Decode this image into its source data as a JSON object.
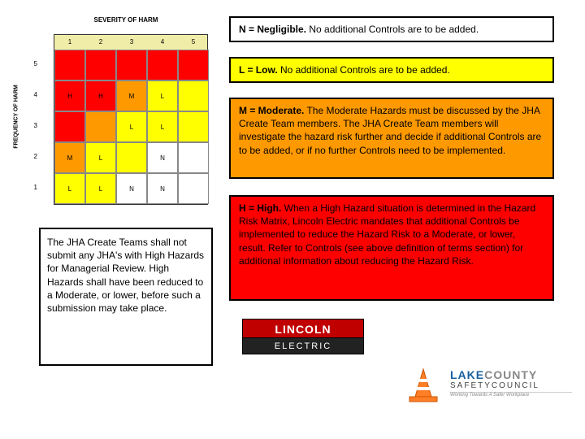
{
  "matrix": {
    "title": "SEVERITY OF HARM",
    "ylabel": "FREQUENCY OF HARM",
    "col_headers": [
      "1",
      "2",
      "3",
      "4",
      "5"
    ],
    "row_labels": [
      "5",
      "4",
      "3",
      "2",
      "1"
    ],
    "cells": [
      [
        {
          "bg": "#ff0000",
          "t": ""
        },
        {
          "bg": "#ff0000",
          "t": ""
        },
        {
          "bg": "#ff0000",
          "t": ""
        },
        {
          "bg": "#ff0000",
          "t": ""
        },
        {
          "bg": "#ff0000",
          "t": ""
        }
      ],
      [
        {
          "bg": "#ff0000",
          "t": "H"
        },
        {
          "bg": "#ff0000",
          "t": "H"
        },
        {
          "bg": "#ff9900",
          "t": "M"
        },
        {
          "bg": "#ffff00",
          "t": "L"
        },
        {
          "bg": "#ffff00",
          "t": ""
        }
      ],
      [
        {
          "bg": "#ff0000",
          "t": ""
        },
        {
          "bg": "#ff9900",
          "t": ""
        },
        {
          "bg": "#ffff00",
          "t": "L"
        },
        {
          "bg": "#ffff00",
          "t": "L"
        },
        {
          "bg": "#ffff00",
          "t": ""
        }
      ],
      [
        {
          "bg": "#ff9900",
          "t": "M"
        },
        {
          "bg": "#ffff00",
          "t": "L"
        },
        {
          "bg": "#ffff00",
          "t": ""
        },
        {
          "bg": "#ffffff",
          "t": "N"
        },
        {
          "bg": "#ffffff",
          "t": ""
        }
      ],
      [
        {
          "bg": "#ffff00",
          "t": "L"
        },
        {
          "bg": "#ffff00",
          "t": "L"
        },
        {
          "bg": "#ffffff",
          "t": "N"
        },
        {
          "bg": "#ffffff",
          "t": "N"
        },
        {
          "bg": "#ffffff",
          "t": ""
        }
      ]
    ]
  },
  "note": "The JHA Create Teams shall not submit any JHA's with High Hazards for Managerial Review. High Hazards shall have been reduced to a Moderate, or lower, before such a submission may take place.",
  "defs": {
    "n": {
      "bold": "N = Negligible.",
      "text": " No additional Controls are to be added."
    },
    "l": {
      "bold": "L = Low.",
      "text": " No additional Controls are to be added."
    },
    "m": {
      "bold": "M = Moderate.",
      "text": " The Moderate Hazards must be discussed by the JHA Create Team members. The JHA Create Team members will investigate the hazard risk further and decide if additional Controls are to be added, or if no further Controls need to be implemented."
    },
    "h": {
      "bold": "H = High.",
      "text": " When a High Hazard situation is determined in the Hazard Risk Matrix, Lincoln Electric mandates that additional Controls be implemented to reduce the Hazard Risk to a Moderate, or lower, result. Refer to Controls (see above definition of terms section) for additional information about reducing the Hazard Risk."
    }
  },
  "lincoln": {
    "top": "LINCOLN",
    "bot": "ELECTRIC"
  },
  "lake": {
    "l1a": "LAKE",
    "l1b": "COUNTY",
    "l2": "SAFETYCOUNCIL",
    "tag": "Working Towards A Safer Workplace"
  },
  "colors": {
    "red": "#ff0000",
    "orange": "#ff9900",
    "yellow": "#ffff00",
    "white": "#ffffff",
    "cone": "#ff7f27"
  }
}
